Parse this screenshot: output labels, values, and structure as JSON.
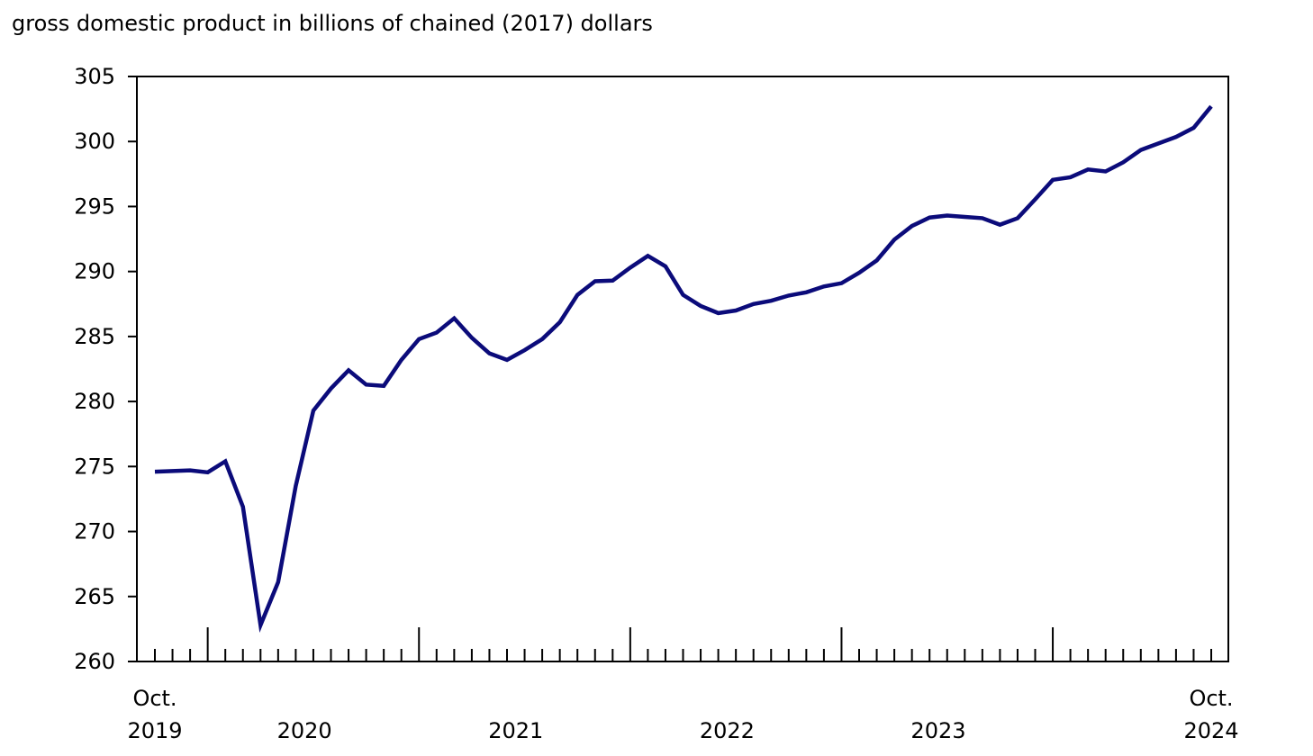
{
  "chart_data": {
    "type": "line",
    "title": "gross domestic product in billions of chained (2017) dollars",
    "xlabel": "",
    "ylabel": "",
    "ylim": [
      260,
      305
    ],
    "y_ticks": [
      "260",
      "265",
      "270",
      "275",
      "280",
      "285",
      "290",
      "295",
      "300",
      "305"
    ],
    "x_labels": [
      {
        "index": 0,
        "lines": [
          "Oct.",
          "2019"
        ]
      },
      {
        "index": 8.5,
        "lines": [
          "",
          "2020"
        ]
      },
      {
        "index": 20.5,
        "lines": [
          "",
          "2021"
        ]
      },
      {
        "index": 32.5,
        "lines": [
          "",
          "2022"
        ]
      },
      {
        "index": 44.5,
        "lines": [
          "",
          "2023"
        ]
      },
      {
        "index": 60,
        "lines": [
          "Oct.",
          "2024"
        ]
      }
    ],
    "year_start_indices": [
      3,
      15,
      27,
      39,
      51
    ],
    "series": [
      {
        "name": "GDP",
        "color": "#0b0b7a",
        "start": "Oct. 2019",
        "values": [
          274.6,
          274.65,
          274.7,
          274.55,
          275.4,
          271.9,
          262.8,
          266.1,
          273.5,
          279.3,
          281.0,
          282.4,
          281.3,
          281.2,
          283.2,
          284.8,
          285.3,
          286.4,
          284.9,
          283.7,
          283.2,
          283.95,
          284.8,
          286.1,
          288.2,
          289.25,
          289.3,
          290.3,
          291.2,
          290.4,
          288.2,
          287.35,
          286.8,
          287.0,
          287.5,
          287.75,
          288.15,
          288.4,
          288.85,
          289.1,
          289.9,
          290.85,
          292.45,
          293.5,
          294.15,
          294.3,
          294.2,
          294.1,
          293.6,
          294.1,
          295.55,
          297.05,
          297.25,
          297.85,
          297.7,
          298.4,
          299.35,
          299.85,
          300.35,
          301.05,
          302.7
        ]
      }
    ]
  }
}
